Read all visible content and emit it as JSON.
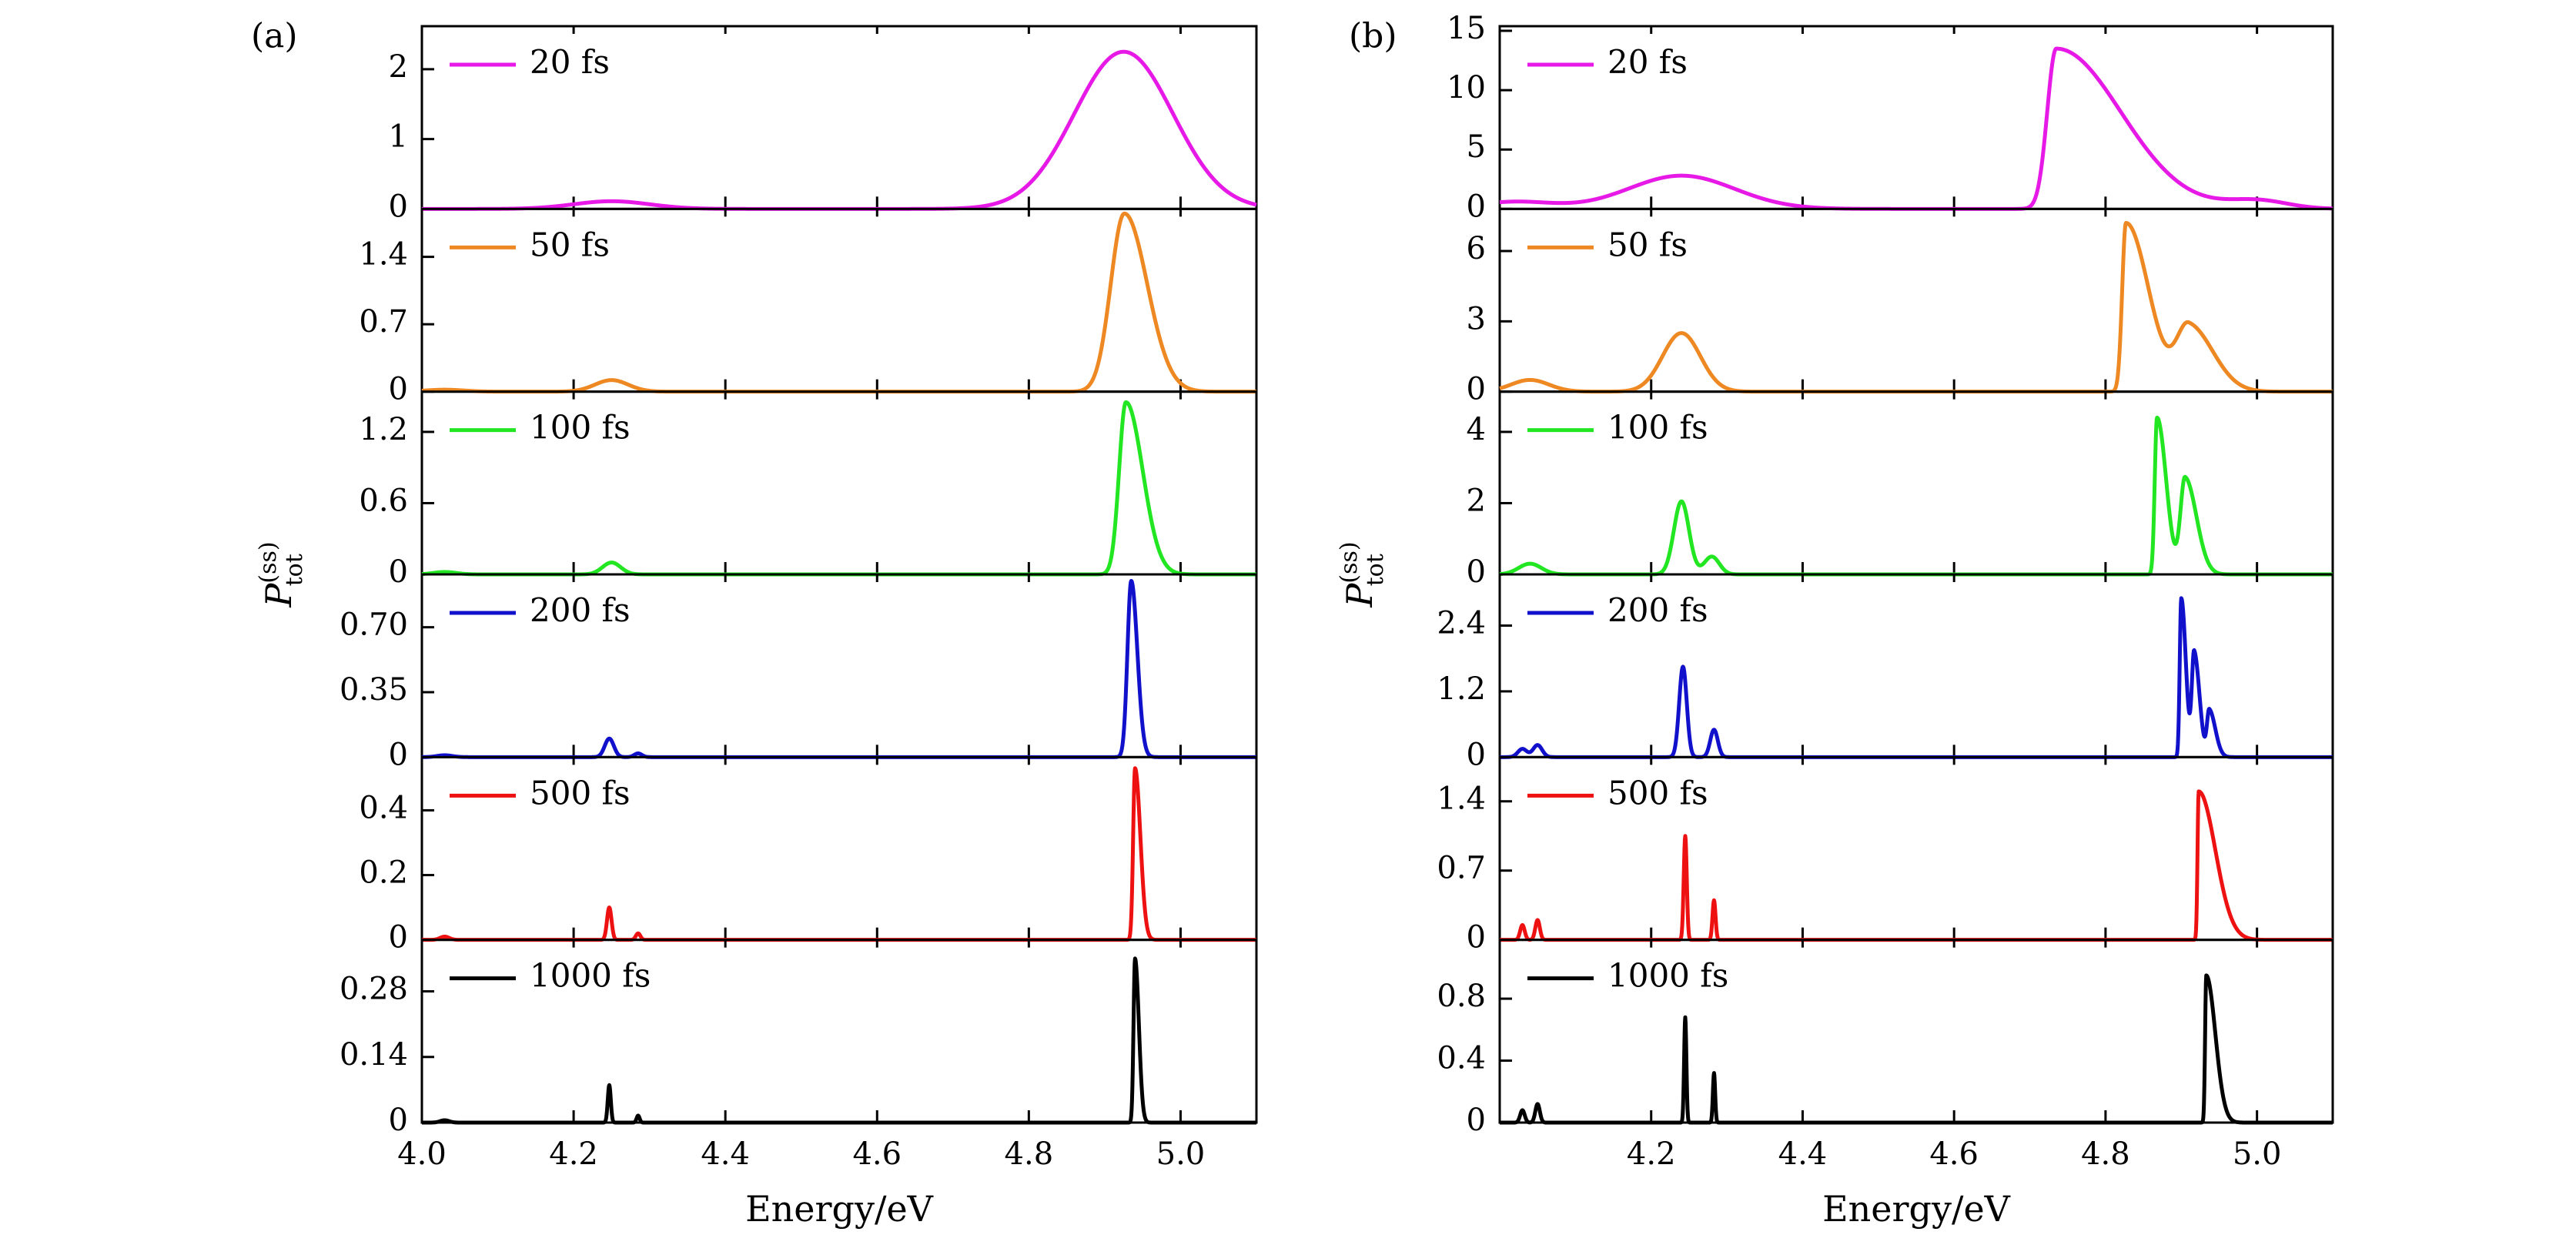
{
  "chart_data": [
    {
      "type": "line",
      "panel_label": "(a)",
      "xlabel": "Energy/eV",
      "ylabel": "P",
      "ylabel_superscript": "(ss)",
      "ylabel_subscript": "tot",
      "xlim": [
        4.0,
        5.1
      ],
      "x_ticks": [
        4.0,
        4.2,
        4.4,
        4.6,
        4.8,
        5.0
      ],
      "x_tick_labels": [
        "4.0",
        "4.2",
        "4.4",
        "4.6",
        "4.8",
        "5.0"
      ],
      "legend_position": "top-left",
      "subplots": [
        {
          "name": "20 fs",
          "color": "#e619e6",
          "ylim": [
            0,
            2.55
          ],
          "y_ticks": [
            0,
            1,
            2
          ],
          "y_tick_labels": [
            "0",
            "1",
            "2"
          ],
          "peaks": [
            {
              "center": 4.25,
              "height": 0.11,
              "width": 0.05
            },
            {
              "center": 4.925,
              "height": 2.25,
              "width": 0.065
            }
          ]
        },
        {
          "name": "50 fs",
          "color": "#ee8822",
          "ylim": [
            0,
            1.85
          ],
          "y_ticks": [
            0,
            0.7,
            1.4
          ],
          "y_tick_labels": [
            "0",
            "0.7",
            "1.4"
          ],
          "peaks": [
            {
              "center": 4.03,
              "height": 0.02,
              "width": 0.025
            },
            {
              "center": 4.25,
              "height": 0.12,
              "width": 0.022
            },
            {
              "center": 4.926,
              "height": 1.85,
              "width": 0.018,
              "width_right": 0.03
            }
          ]
        },
        {
          "name": "100 fs",
          "color": "#22e622",
          "ylim": [
            0,
            1.5
          ],
          "y_ticks": [
            0,
            0.6,
            1.2
          ],
          "y_tick_labels": [
            "0",
            "0.6",
            "1.2"
          ],
          "peaks": [
            {
              "center": 4.03,
              "height": 0.02,
              "width": 0.015
            },
            {
              "center": 4.25,
              "height": 0.1,
              "width": 0.012
            },
            {
              "center": 4.928,
              "height": 1.45,
              "width": 0.009,
              "width_right": 0.022
            }
          ]
        },
        {
          "name": "200 fs",
          "color": "#1111cc",
          "ylim": [
            0,
            0.96
          ],
          "y_ticks": [
            0,
            0.35,
            0.7
          ],
          "y_tick_labels": [
            "0",
            "0.35",
            "0.70"
          ],
          "peaks": [
            {
              "center": 4.03,
              "height": 0.01,
              "width": 0.01
            },
            {
              "center": 4.247,
              "height": 0.1,
              "width": 0.006
            },
            {
              "center": 4.285,
              "height": 0.02,
              "width": 0.005
            },
            {
              "center": 4.935,
              "height": 0.95,
              "width": 0.005,
              "width_right": 0.008
            }
          ]
        },
        {
          "name": "500 fs",
          "color": "#ee1111",
          "ylim": [
            0,
            0.55
          ],
          "y_ticks": [
            0,
            0.2,
            0.4
          ],
          "y_tick_labels": [
            "0",
            "0.2",
            "0.4"
          ],
          "peaks": [
            {
              "center": 4.03,
              "height": 0.01,
              "width": 0.006
            },
            {
              "center": 4.247,
              "height": 0.1,
              "width": 0.003
            },
            {
              "center": 4.285,
              "height": 0.02,
              "width": 0.003
            },
            {
              "center": 4.94,
              "height": 0.53,
              "width": 0.0025,
              "width_right": 0.007
            }
          ]
        },
        {
          "name": "1000 fs",
          "color": "#000000",
          "ylim": [
            0,
            0.38
          ],
          "y_ticks": [
            0,
            0.14,
            0.28
          ],
          "y_tick_labels": [
            "0",
            "0.14",
            "0.28"
          ],
          "peaks": [
            {
              "center": 4.03,
              "height": 0.005,
              "width": 0.006
            },
            {
              "center": 4.247,
              "height": 0.08,
              "width": 0.002
            },
            {
              "center": 4.285,
              "height": 0.015,
              "width": 0.002
            },
            {
              "center": 4.94,
              "height": 0.35,
              "width": 0.002,
              "width_right": 0.005
            }
          ]
        }
      ]
    },
    {
      "type": "line",
      "panel_label": "(b)",
      "xlabel": "Energy/eV",
      "ylabel": "P",
      "ylabel_superscript": "(ss)",
      "ylabel_subscript": "tot",
      "xlim": [
        4.0,
        5.1
      ],
      "x_ticks": [
        4.2,
        4.4,
        4.6,
        4.8,
        5.0
      ],
      "x_tick_labels": [
        "4.2",
        "4.4",
        "4.6",
        "4.8",
        "5.0"
      ],
      "legend_position": "top-left",
      "subplots": [
        {
          "name": "20 fs",
          "color": "#e619e6",
          "ylim": [
            0,
            15
          ],
          "y_ticks": [
            0,
            5,
            10,
            15
          ],
          "y_tick_labels": [
            "0",
            "5",
            "10",
            "15"
          ],
          "peaks": [
            {
              "center": 4.02,
              "height": 0.6,
              "width": 0.05
            },
            {
              "center": 4.24,
              "height": 2.8,
              "width": 0.07
            },
            {
              "center": 4.735,
              "height": 13.5,
              "width": 0.012,
              "width_right": 0.085
            },
            {
              "center": 5.0,
              "height": 0.7,
              "width": 0.04
            }
          ]
        },
        {
          "name": "50 fs",
          "color": "#ee8822",
          "ylim": [
            0,
            7.6
          ],
          "y_ticks": [
            0,
            3,
            6
          ],
          "y_tick_labels": [
            "0",
            "3",
            "6"
          ],
          "peaks": [
            {
              "center": 4.04,
              "height": 0.5,
              "width": 0.025
            },
            {
              "center": 4.24,
              "height": 2.5,
              "width": 0.025
            },
            {
              "center": 4.827,
              "height": 7.2,
              "width": 0.005,
              "width_right": 0.03
            },
            {
              "center": 4.91,
              "height": 2.8,
              "width": 0.016,
              "width_right": 0.032
            }
          ]
        },
        {
          "name": "100 fs",
          "color": "#22e622",
          "ylim": [
            0,
            5.0
          ],
          "y_ticks": [
            0,
            2,
            4
          ],
          "y_tick_labels": [
            "0",
            "2",
            "4"
          ],
          "peaks": [
            {
              "center": 4.04,
              "height": 0.3,
              "width": 0.015
            },
            {
              "center": 4.24,
              "height": 2.05,
              "width": 0.01
            },
            {
              "center": 4.28,
              "height": 0.5,
              "width": 0.01
            },
            {
              "center": 4.868,
              "height": 4.4,
              "width": 0.003,
              "width_right": 0.012
            },
            {
              "center": 4.905,
              "height": 2.7,
              "width": 0.006,
              "width_right": 0.015
            }
          ]
        },
        {
          "name": "200 fs",
          "color": "#1111cc",
          "ylim": [
            0,
            3.25
          ],
          "y_ticks": [
            0,
            1.2,
            2.4
          ],
          "y_tick_labels": [
            "0",
            "1.2",
            "2.4"
          ],
          "peaks": [
            {
              "center": 4.03,
              "height": 0.15,
              "width": 0.006
            },
            {
              "center": 4.05,
              "height": 0.22,
              "width": 0.006
            },
            {
              "center": 4.242,
              "height": 1.65,
              "width": 0.005
            },
            {
              "center": 4.283,
              "height": 0.5,
              "width": 0.005
            },
            {
              "center": 4.9,
              "height": 2.9,
              "width": 0.002,
              "width_right": 0.006
            },
            {
              "center": 4.917,
              "height": 1.9,
              "width": 0.003,
              "width_right": 0.007
            },
            {
              "center": 4.937,
              "height": 0.85,
              "width": 0.003,
              "width_right": 0.008
            }
          ]
        },
        {
          "name": "500 fs",
          "color": "#ee1111",
          "ylim": [
            0,
            1.8
          ],
          "y_ticks": [
            0,
            0.7,
            1.4
          ],
          "y_tick_labels": [
            "0",
            "0.7",
            "1.4"
          ],
          "peaks": [
            {
              "center": 4.03,
              "height": 0.15,
              "width": 0.003
            },
            {
              "center": 4.05,
              "height": 0.2,
              "width": 0.003
            },
            {
              "center": 4.245,
              "height": 1.05,
              "width": 0.002
            },
            {
              "center": 4.283,
              "height": 0.4,
              "width": 0.002
            },
            {
              "center": 4.923,
              "height": 1.5,
              "width": 0.0015,
              "width_right": 0.022
            }
          ]
        },
        {
          "name": "1000 fs",
          "color": "#000000",
          "ylim": [
            0,
            1.15
          ],
          "y_ticks": [
            0,
            0.4,
            0.8
          ],
          "y_tick_labels": [
            "0",
            "0.4",
            "0.8"
          ],
          "peaks": [
            {
              "center": 4.03,
              "height": 0.08,
              "width": 0.003
            },
            {
              "center": 4.05,
              "height": 0.12,
              "width": 0.003
            },
            {
              "center": 4.245,
              "height": 0.68,
              "width": 0.0015
            },
            {
              "center": 4.283,
              "height": 0.32,
              "width": 0.0015
            },
            {
              "center": 4.933,
              "height": 0.95,
              "width": 0.0015,
              "width_right": 0.012
            }
          ]
        }
      ]
    }
  ]
}
